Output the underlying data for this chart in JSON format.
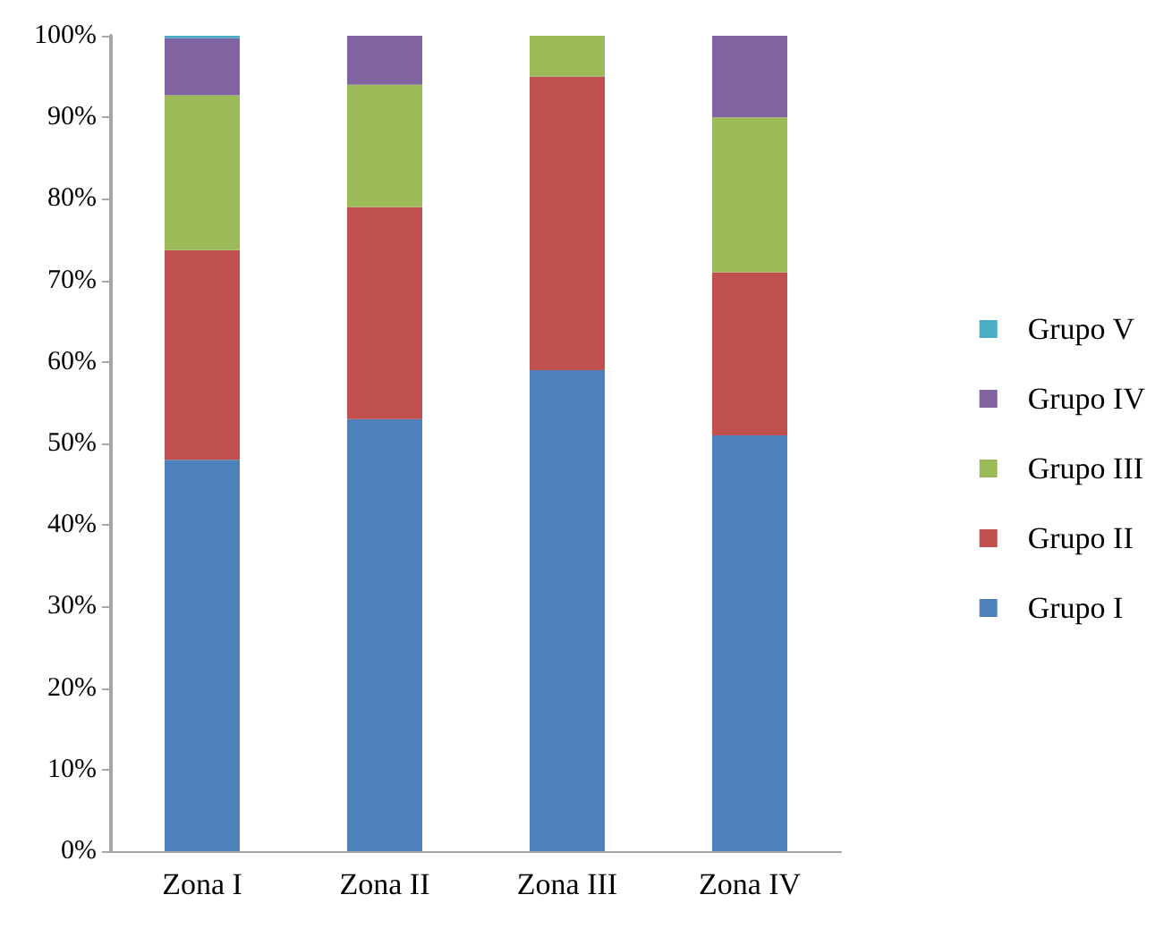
{
  "chart_data": {
    "type": "bar",
    "stacked": true,
    "categories": [
      "Zona I",
      "Zona II",
      "Zona III",
      "Zona IV"
    ],
    "series": [
      {
        "name": "Grupo I",
        "color": "#4f81bd",
        "values": [
          48,
          53,
          59,
          51
        ]
      },
      {
        "name": "Grupo II",
        "color": "#c0504d",
        "values": [
          25.7,
          26,
          36,
          20
        ]
      },
      {
        "name": "Grupo III",
        "color": "#9bbb59",
        "values": [
          19,
          15,
          5,
          19
        ]
      },
      {
        "name": "Grupo IV",
        "color": "#8064a2",
        "values": [
          7,
          6,
          0,
          10
        ]
      },
      {
        "name": "Grupo V",
        "color": "#4bacc6",
        "values": [
          0.3,
          0,
          0,
          0
        ]
      }
    ],
    "ylim": [
      0,
      100
    ],
    "yticks": [
      {
        "value": 0,
        "label": "0%"
      },
      {
        "value": 10,
        "label": "10%"
      },
      {
        "value": 20,
        "label": "20%"
      },
      {
        "value": 30,
        "label": "30%"
      },
      {
        "value": 40,
        "label": "40%"
      },
      {
        "value": 50,
        "label": "50%"
      },
      {
        "value": 60,
        "label": "60%"
      },
      {
        "value": 70,
        "label": "70%"
      },
      {
        "value": 80,
        "label": "80%"
      },
      {
        "value": 90,
        "label": "90%"
      },
      {
        "value": 100,
        "label": "100%"
      }
    ],
    "grid": false,
    "legend": "right"
  }
}
